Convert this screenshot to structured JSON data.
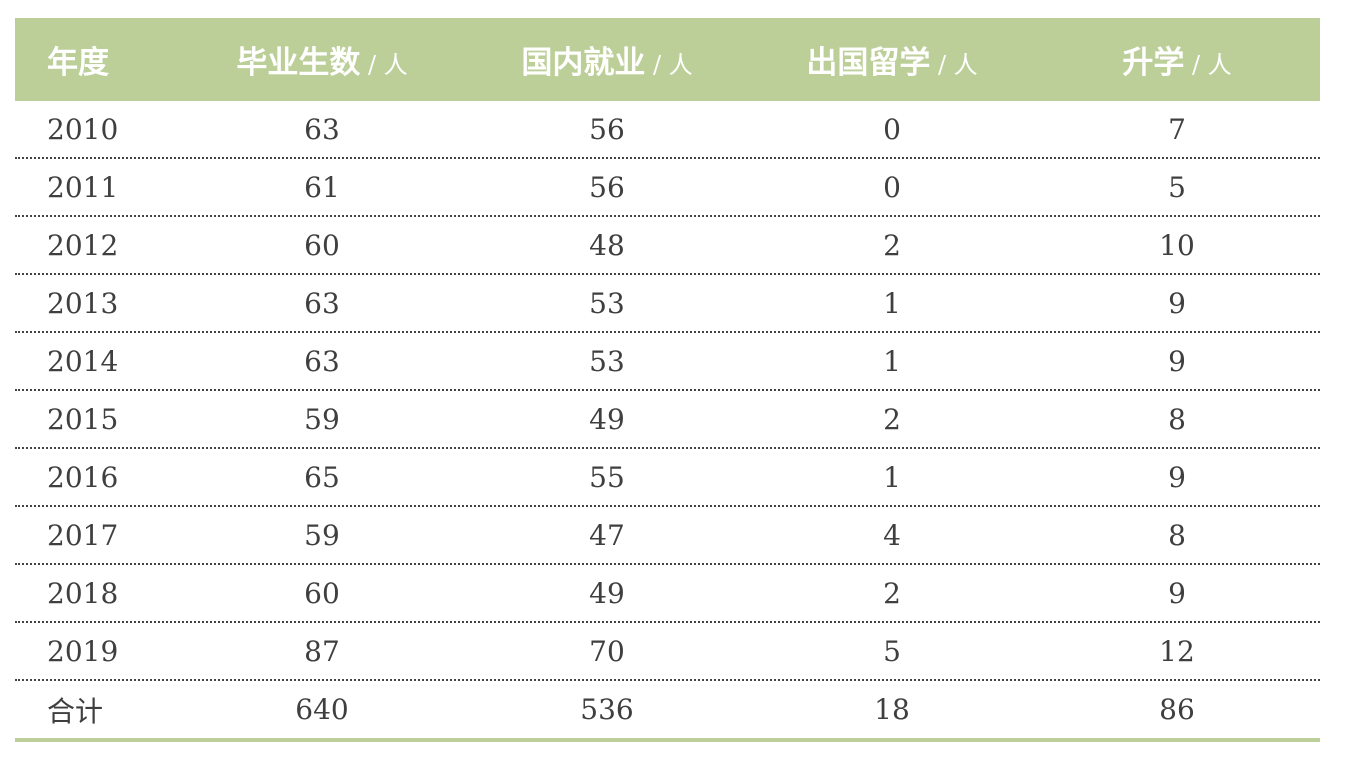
{
  "colors": {
    "header_bg": "#bccf98",
    "header_text": "#ffffff",
    "body_text": "#3f3f3f",
    "bottom_rule": "#bccf98"
  },
  "header": [
    {
      "label": "年度",
      "unit": ""
    },
    {
      "label": "毕业生数",
      "unit": " / 人"
    },
    {
      "label": "国内就业",
      "unit": " / 人"
    },
    {
      "label": "出国留学",
      "unit": " / 人"
    },
    {
      "label": "升学",
      "unit": " / 人"
    }
  ],
  "rows": [
    [
      "2010",
      "63",
      "56",
      "0",
      "7"
    ],
    [
      "2011",
      "61",
      "56",
      "0",
      "5"
    ],
    [
      "2012",
      "60",
      "48",
      "2",
      "10"
    ],
    [
      "2013",
      "63",
      "53",
      "1",
      "9"
    ],
    [
      "2014",
      "63",
      "53",
      "1",
      "9"
    ],
    [
      "2015",
      "59",
      "49",
      "2",
      "8"
    ],
    [
      "2016",
      "65",
      "55",
      "1",
      "9"
    ],
    [
      "2017",
      "59",
      "47",
      "4",
      "8"
    ],
    [
      "2018",
      "60",
      "49",
      "2",
      "9"
    ],
    [
      "2019",
      "87",
      "70",
      "5",
      "12"
    ]
  ],
  "total": [
    "合计",
    "640",
    "536",
    "18",
    "86"
  ]
}
